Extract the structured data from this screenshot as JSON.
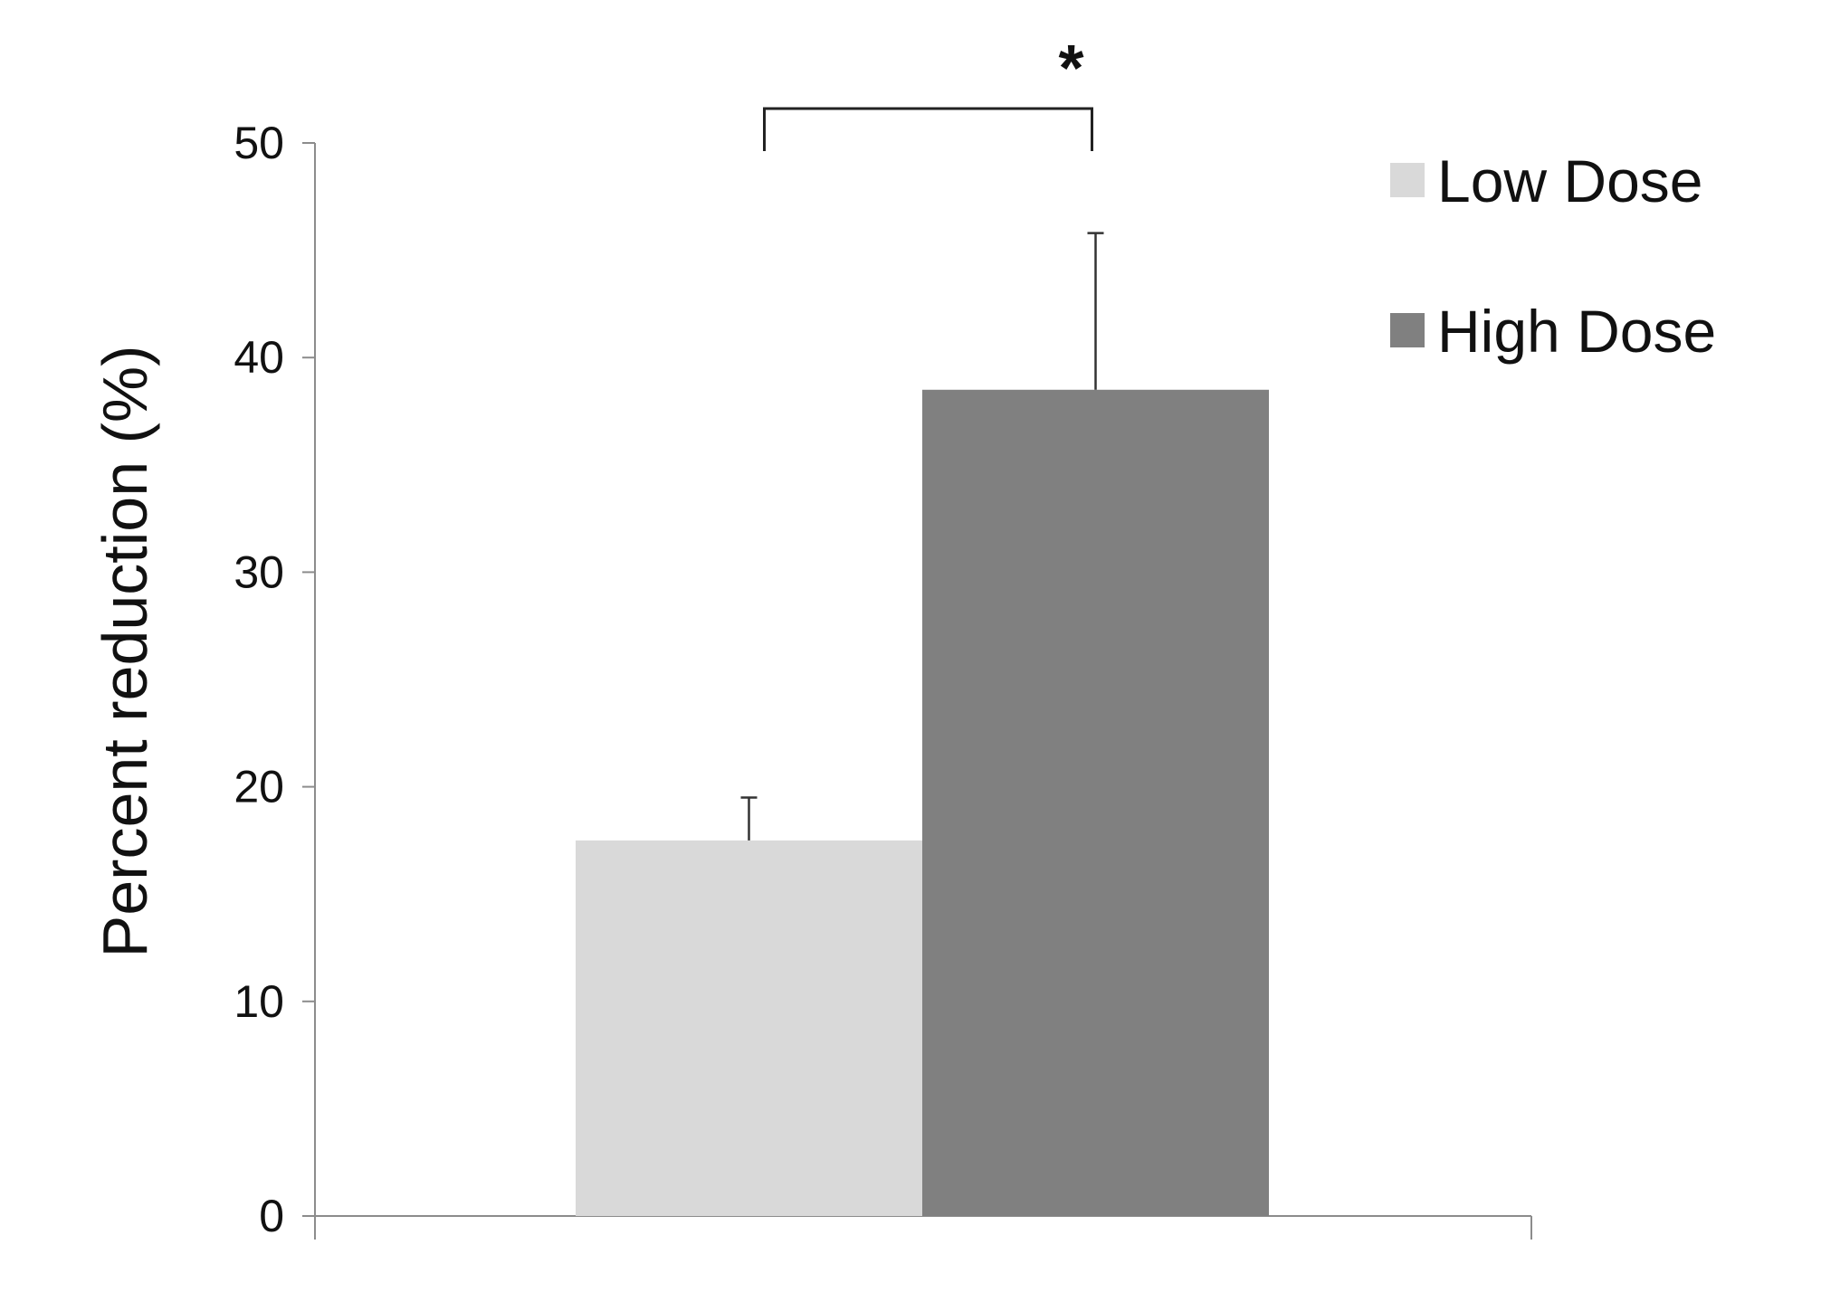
{
  "chart_data": {
    "type": "bar",
    "title": "",
    "xlabel": "",
    "ylabel": "Percent reduction (%)",
    "ylim": [
      0,
      50
    ],
    "yticks": [
      0,
      10,
      20,
      30,
      40,
      50
    ],
    "grid": false,
    "legend_position": "top-right",
    "series": [
      {
        "name": "Low Dose",
        "value": 17.5,
        "error": 2.0,
        "color": "#d9d9d9"
      },
      {
        "name": "High Dose",
        "value": 38.5,
        "error": 7.3,
        "color": "#808080"
      }
    ],
    "annotations": [
      {
        "type": "significance-bracket",
        "between": [
          "Low Dose",
          "High Dose"
        ],
        "label": "*"
      }
    ]
  }
}
